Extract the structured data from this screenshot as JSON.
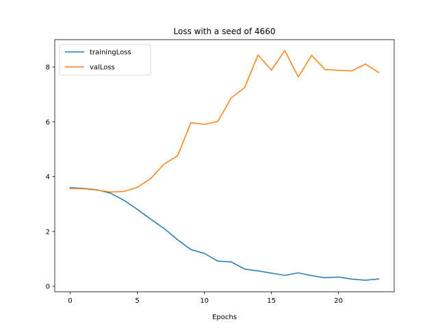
{
  "chart_data": {
    "type": "line",
    "title": "Loss with a seed of 4660",
    "xlabel": "Epochs",
    "ylabel": "",
    "xlim": [
      -1.15,
      24.15
    ],
    "ylim": [
      -0.2,
      9.0
    ],
    "xticks": [
      0,
      5,
      10,
      15,
      20
    ],
    "yticks": [
      0,
      2,
      4,
      6,
      8
    ],
    "grid": false,
    "legend_position": "top-left",
    "x": [
      0,
      1,
      2,
      3,
      4,
      5,
      6,
      7,
      8,
      9,
      10,
      11,
      12,
      13,
      14,
      15,
      16,
      17,
      18,
      19,
      20,
      21,
      22,
      23
    ],
    "series": [
      {
        "name": "trainingLoss",
        "color": "#1f77b4",
        "values": [
          3.6,
          3.57,
          3.52,
          3.4,
          3.14,
          2.81,
          2.45,
          2.11,
          1.7,
          1.34,
          1.2,
          0.92,
          0.89,
          0.63,
          0.56,
          0.48,
          0.4,
          0.49,
          0.39,
          0.31,
          0.34,
          0.26,
          0.22,
          0.27
        ]
      },
      {
        "name": "valLoss",
        "color": "#ff7f0e",
        "values": [
          3.57,
          3.56,
          3.51,
          3.44,
          3.46,
          3.61,
          3.93,
          4.46,
          4.76,
          5.97,
          5.91,
          6.01,
          6.87,
          7.25,
          8.44,
          7.89,
          8.6,
          7.64,
          8.43,
          7.91,
          7.88,
          7.86,
          8.11,
          7.8
        ]
      }
    ]
  }
}
